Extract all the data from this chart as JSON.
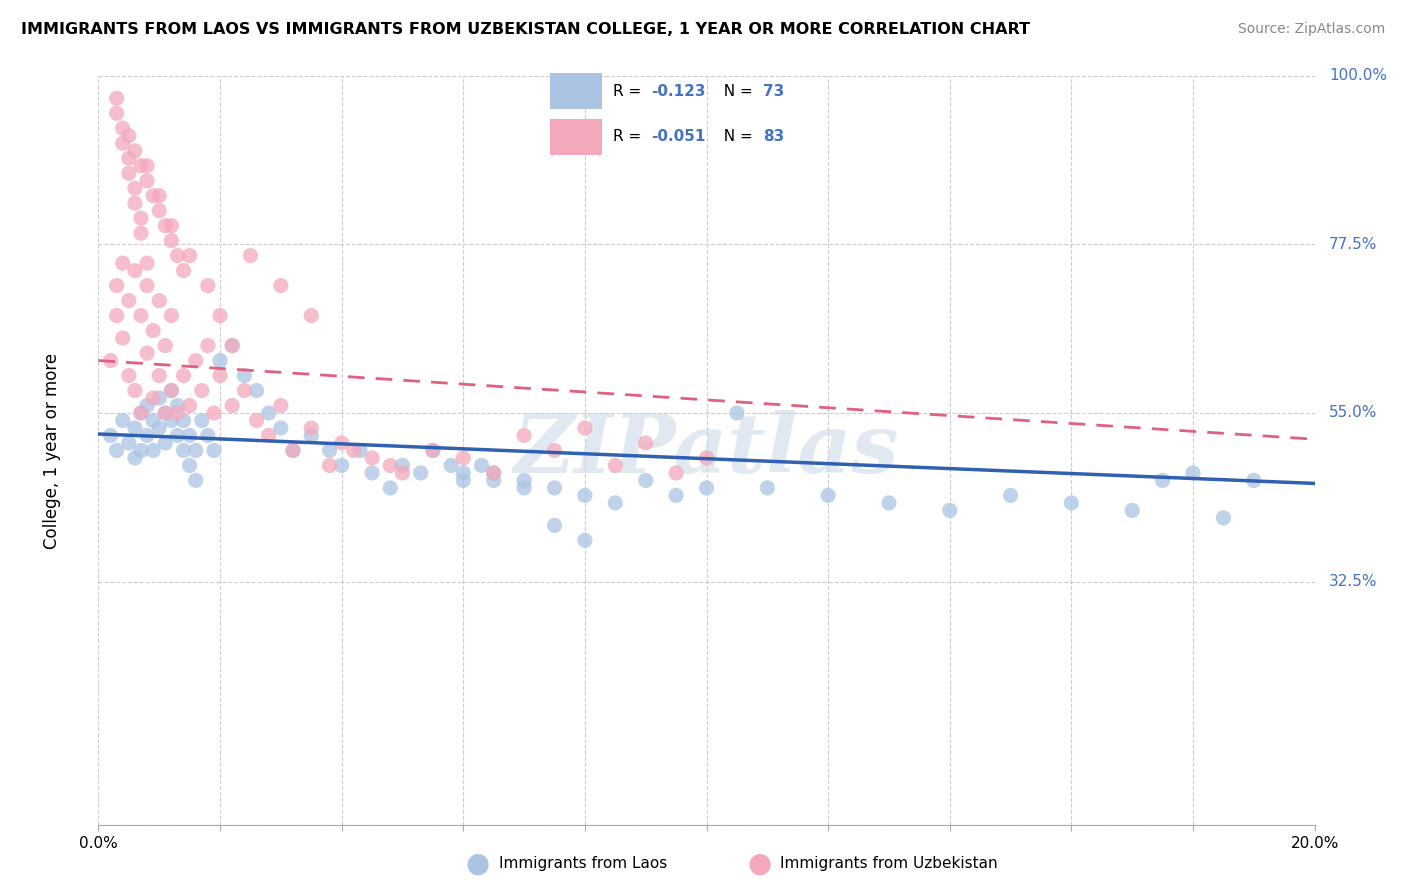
{
  "title": "IMMIGRANTS FROM LAOS VS IMMIGRANTS FROM UZBEKISTAN COLLEGE, 1 YEAR OR MORE CORRELATION CHART",
  "source": "Source: ZipAtlas.com",
  "ylabel": "College, 1 year or more",
  "xlim": [
    0.0,
    0.2
  ],
  "ylim": [
    0.0,
    1.0
  ],
  "ytick_values": [
    0.0,
    0.325,
    0.55,
    0.775,
    1.0
  ],
  "ytick_labels": [
    "",
    "32.5%",
    "55.0%",
    "77.5%",
    "100.0%"
  ],
  "laos_color": "#aac4e2",
  "uzbekistan_color": "#f4a8bc",
  "laos_line_color": "#3060b0",
  "uzbekistan_line_color": "#e06080",
  "laos_R": "-0.123",
  "laos_N": "73",
  "uzbekistan_R": "-0.051",
  "uzbekistan_N": "83",
  "watermark": "ZIPatlas",
  "laos_trend": [
    0.522,
    0.456
  ],
  "uzbekistan_trend": [
    0.62,
    0.515
  ],
  "laos_scatter_x": [
    0.002,
    0.003,
    0.004,
    0.005,
    0.006,
    0.006,
    0.007,
    0.007,
    0.008,
    0.008,
    0.009,
    0.009,
    0.01,
    0.01,
    0.011,
    0.011,
    0.012,
    0.012,
    0.013,
    0.013,
    0.014,
    0.014,
    0.015,
    0.015,
    0.016,
    0.016,
    0.017,
    0.018,
    0.019,
    0.02,
    0.022,
    0.024,
    0.026,
    0.028,
    0.03,
    0.032,
    0.035,
    0.038,
    0.04,
    0.043,
    0.045,
    0.048,
    0.05,
    0.053,
    0.055,
    0.058,
    0.06,
    0.063,
    0.065,
    0.07,
    0.075,
    0.08,
    0.085,
    0.09,
    0.095,
    0.1,
    0.105,
    0.11,
    0.12,
    0.13,
    0.14,
    0.15,
    0.16,
    0.17,
    0.175,
    0.18,
    0.185,
    0.19,
    0.075,
    0.08,
    0.06,
    0.065,
    0.07
  ],
  "laos_scatter_y": [
    0.52,
    0.5,
    0.54,
    0.51,
    0.53,
    0.49,
    0.55,
    0.5,
    0.56,
    0.52,
    0.54,
    0.5,
    0.57,
    0.53,
    0.55,
    0.51,
    0.58,
    0.54,
    0.56,
    0.52,
    0.5,
    0.54,
    0.48,
    0.52,
    0.5,
    0.46,
    0.54,
    0.52,
    0.5,
    0.62,
    0.64,
    0.6,
    0.58,
    0.55,
    0.53,
    0.5,
    0.52,
    0.5,
    0.48,
    0.5,
    0.47,
    0.45,
    0.48,
    0.47,
    0.5,
    0.48,
    0.46,
    0.48,
    0.47,
    0.46,
    0.45,
    0.44,
    0.43,
    0.46,
    0.44,
    0.45,
    0.55,
    0.45,
    0.44,
    0.43,
    0.42,
    0.44,
    0.43,
    0.42,
    0.46,
    0.47,
    0.41,
    0.46,
    0.4,
    0.38,
    0.47,
    0.46,
    0.45
  ],
  "uzbekistan_scatter_x": [
    0.002,
    0.003,
    0.003,
    0.004,
    0.004,
    0.005,
    0.005,
    0.006,
    0.006,
    0.007,
    0.007,
    0.008,
    0.008,
    0.009,
    0.009,
    0.01,
    0.01,
    0.011,
    0.011,
    0.012,
    0.012,
    0.013,
    0.014,
    0.015,
    0.016,
    0.017,
    0.018,
    0.019,
    0.02,
    0.022,
    0.024,
    0.026,
    0.028,
    0.03,
    0.032,
    0.035,
    0.038,
    0.04,
    0.042,
    0.045,
    0.048,
    0.05,
    0.055,
    0.06,
    0.065,
    0.07,
    0.075,
    0.08,
    0.085,
    0.09,
    0.095,
    0.1,
    0.025,
    0.03,
    0.035,
    0.008,
    0.01,
    0.012,
    0.015,
    0.018,
    0.02,
    0.022,
    0.006,
    0.008,
    0.01,
    0.012,
    0.014,
    0.005,
    0.007,
    0.009,
    0.011,
    0.013,
    0.003,
    0.004,
    0.005,
    0.006,
    0.007,
    0.008,
    0.003,
    0.004,
    0.005,
    0.006,
    0.007
  ],
  "uzbekistan_scatter_y": [
    0.62,
    0.68,
    0.72,
    0.65,
    0.75,
    0.6,
    0.7,
    0.58,
    0.74,
    0.55,
    0.68,
    0.63,
    0.72,
    0.57,
    0.66,
    0.6,
    0.7,
    0.55,
    0.64,
    0.58,
    0.68,
    0.55,
    0.6,
    0.56,
    0.62,
    0.58,
    0.64,
    0.55,
    0.6,
    0.56,
    0.58,
    0.54,
    0.52,
    0.56,
    0.5,
    0.53,
    0.48,
    0.51,
    0.5,
    0.49,
    0.48,
    0.47,
    0.5,
    0.49,
    0.47,
    0.52,
    0.5,
    0.53,
    0.48,
    0.51,
    0.47,
    0.49,
    0.76,
    0.72,
    0.68,
    0.88,
    0.84,
    0.8,
    0.76,
    0.72,
    0.68,
    0.64,
    0.9,
    0.86,
    0.82,
    0.78,
    0.74,
    0.92,
    0.88,
    0.84,
    0.8,
    0.76,
    0.95,
    0.91,
    0.87,
    0.83,
    0.79,
    0.75,
    0.97,
    0.93,
    0.89,
    0.85,
    0.81
  ]
}
